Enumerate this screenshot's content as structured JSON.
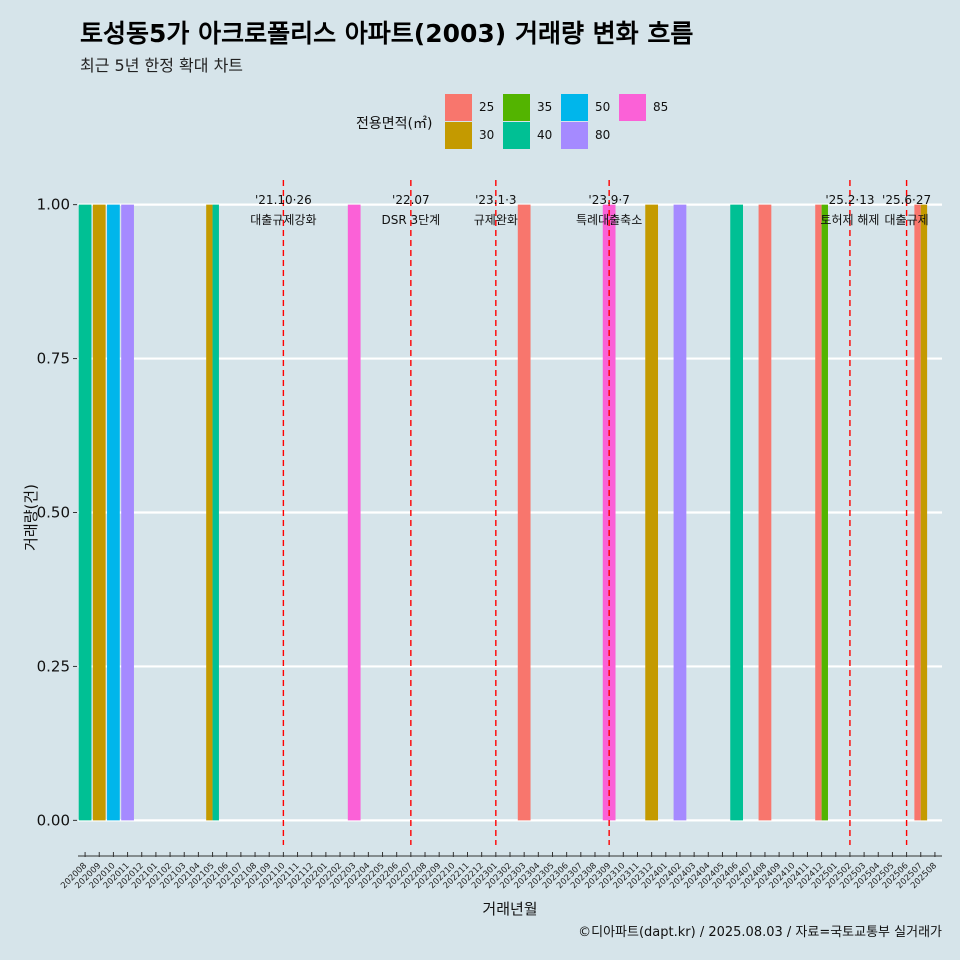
{
  "title": "토성동5가 아크로폴리스 아파트(2003) 거래량 변화 흐름",
  "subtitle": "최근 5년 한정 확대 차트",
  "caption": "©디아파트(dapt.kr) / 2025.08.03 / 자료=국토교통부 실거래가",
  "legend": {
    "title": "전용면적(㎡)",
    "items": [
      {
        "label": "25",
        "color": "#F8766D"
      },
      {
        "label": "30",
        "color": "#C49A00"
      },
      {
        "label": "35",
        "color": "#53B400"
      },
      {
        "label": "40",
        "color": "#00C094"
      },
      {
        "label": "50",
        "color": "#00B6EB"
      },
      {
        "label": "80",
        "color": "#A58AFF"
      },
      {
        "label": "85",
        "color": "#FB61D7"
      }
    ]
  },
  "chart_data": {
    "type": "bar",
    "xlabel": "거래년월",
    "ylabel": "거래량(건)",
    "ylim": [
      -0.04,
      1.04
    ],
    "yticks": [
      "0.00",
      "0.25",
      "0.50",
      "0.75",
      "1.00"
    ],
    "categories": [
      "202008",
      "202009",
      "202010",
      "202011",
      "202012",
      "202101",
      "202102",
      "202103",
      "202104",
      "202105",
      "202106",
      "202107",
      "202108",
      "202109",
      "202110",
      "202111",
      "202112",
      "202201",
      "202202",
      "202203",
      "202204",
      "202205",
      "202206",
      "202207",
      "202208",
      "202209",
      "202210",
      "202211",
      "202212",
      "202301",
      "202302",
      "202303",
      "202304",
      "202305",
      "202306",
      "202307",
      "202308",
      "202309",
      "202310",
      "202311",
      "202312",
      "202401",
      "202402",
      "202403",
      "202404",
      "202405",
      "202406",
      "202407",
      "202408",
      "202409",
      "202410",
      "202411",
      "202412",
      "202501",
      "202502",
      "202503",
      "202504",
      "202505",
      "202506",
      "202507",
      "202508"
    ],
    "bars": [
      {
        "month": "202008",
        "area": "40",
        "value": 1
      },
      {
        "month": "202009",
        "area": "30",
        "value": 1
      },
      {
        "month": "202010",
        "area": "50",
        "value": 1
      },
      {
        "month": "202011",
        "area": "80",
        "value": 1
      },
      {
        "month": "202105",
        "area": "30",
        "value": 1
      },
      {
        "month": "202105",
        "area": "40",
        "value": 1
      },
      {
        "month": "202203",
        "area": "85",
        "value": 1
      },
      {
        "month": "202303",
        "area": "25",
        "value": 1
      },
      {
        "month": "202309",
        "area": "85",
        "value": 1
      },
      {
        "month": "202312",
        "area": "30",
        "value": 1
      },
      {
        "month": "202402",
        "area": "80",
        "value": 1
      },
      {
        "month": "202406",
        "area": "40",
        "value": 1
      },
      {
        "month": "202408",
        "area": "25",
        "value": 1
      },
      {
        "month": "202412",
        "area": "25",
        "value": 1
      },
      {
        "month": "202412",
        "area": "35",
        "value": 1
      },
      {
        "month": "202507",
        "area": "25",
        "value": 1
      },
      {
        "month": "202507",
        "area": "30",
        "value": 1
      }
    ],
    "events": [
      {
        "month": "202110",
        "date": "'21.10·26",
        "label": "대출규제강화"
      },
      {
        "month": "202207",
        "date": "'22.07",
        "label": "DSR 3단계"
      },
      {
        "month": "202301",
        "date": "'23.1·3",
        "label": "규제완화"
      },
      {
        "month": "202309",
        "date": "'23.9·7",
        "label": "특례대출축소"
      },
      {
        "month": "202502",
        "date": "'25.2·13",
        "label": "토허제 해제"
      },
      {
        "month": "202506",
        "date": "'25.6·27",
        "label": "대출규제"
      }
    ]
  }
}
